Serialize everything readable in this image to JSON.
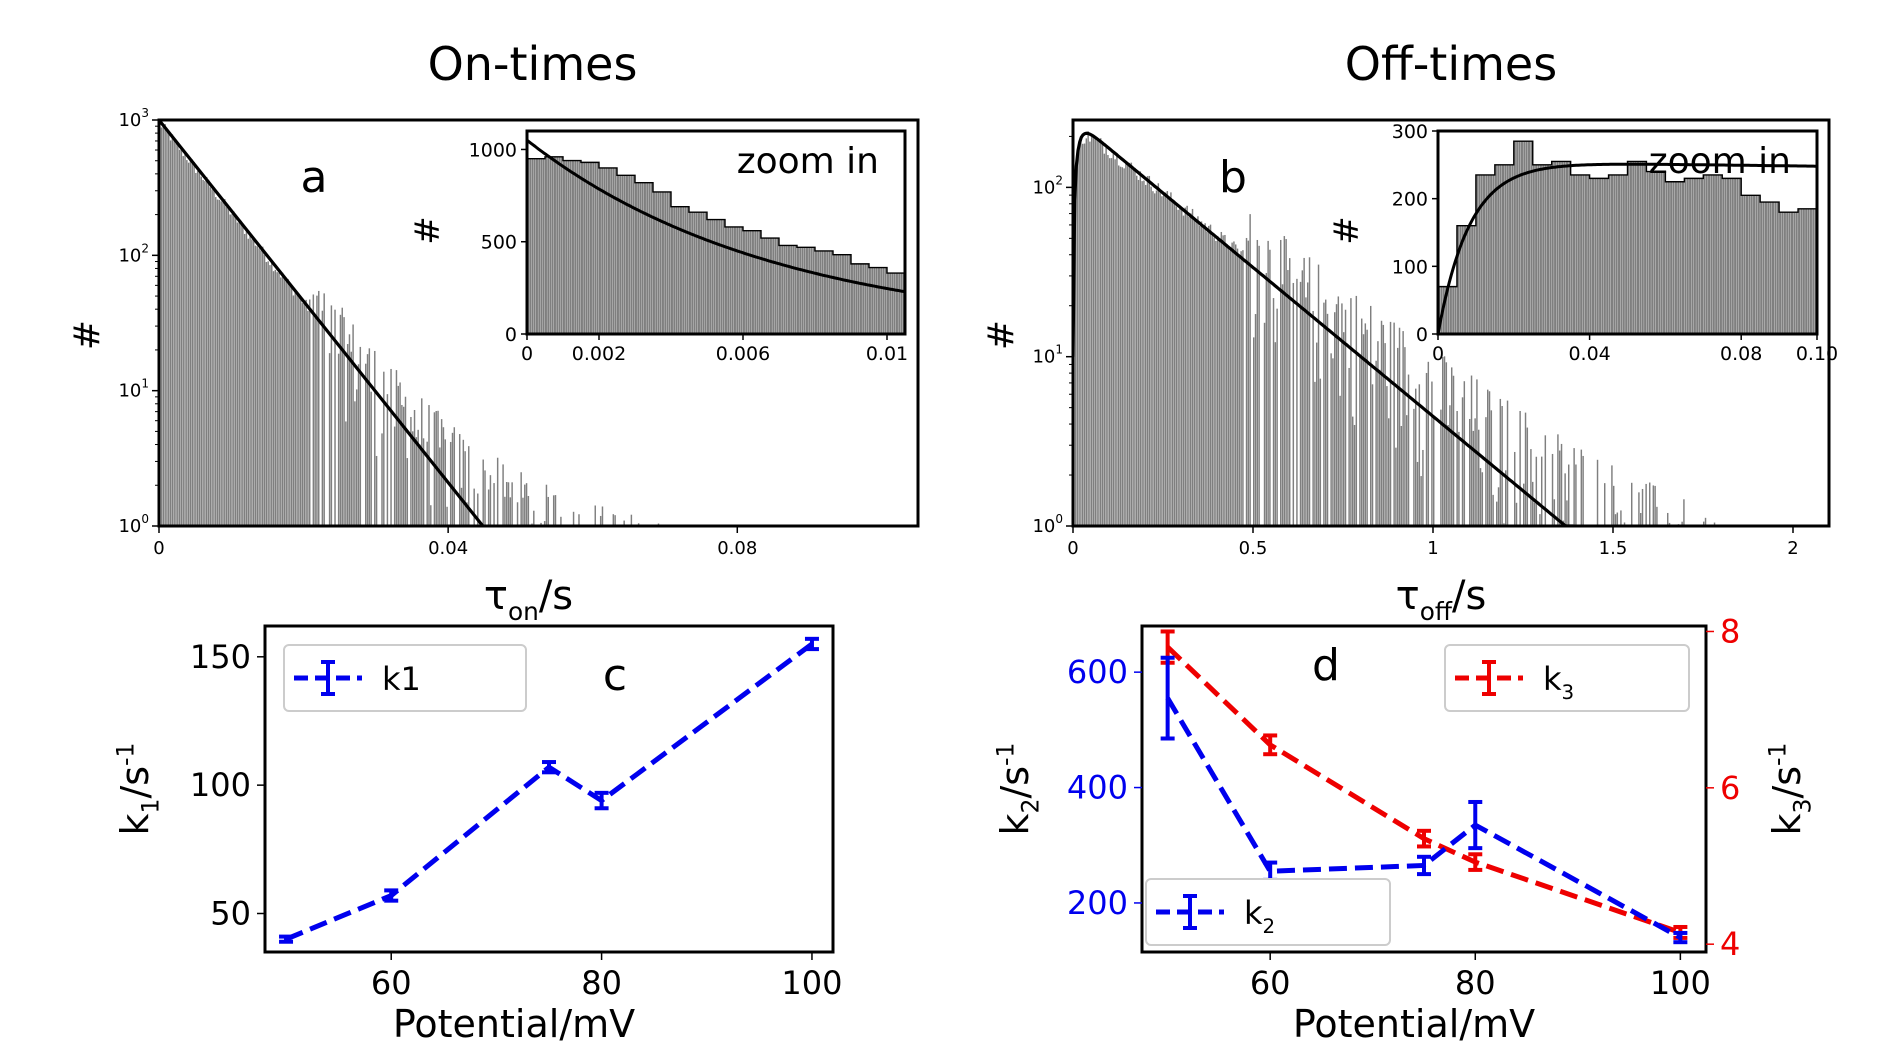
{
  "colors": {
    "hist": "#7f7f7f",
    "fit": "#000000",
    "blue": "#0000ee",
    "red": "#ee0000",
    "legend_border": "#cccccc"
  },
  "chart_data": [
    {
      "id": "a",
      "type": "bar",
      "title": "On-times",
      "panel_label": "a",
      "xlabel_main": "τ",
      "xlabel_sub": "on",
      "xlabel_tail": "/s",
      "ylabel": "#",
      "yscale": "log",
      "xlim": [
        0,
        0.105
      ],
      "ylim": [
        1,
        1000
      ],
      "x_ticks": [
        0,
        0.04,
        0.08
      ],
      "x_tick_labels": [
        "0",
        "0.04",
        "0.08"
      ],
      "y_ticks": [
        1,
        10,
        100,
        1000
      ],
      "y_tick_labels": [
        {
          "base": "10",
          "exp": "0"
        },
        {
          "base": "10",
          "exp": "1"
        },
        {
          "base": "10",
          "exp": "2"
        },
        {
          "base": "10",
          "exp": "3"
        }
      ],
      "hist_model": {
        "kind": "exp_decay",
        "x_max": 0.105,
        "bin_width": 0.00025,
        "amplitude": 950,
        "rate": 155,
        "tail_floor": 3.0
      },
      "fit_line": {
        "x": [
          0,
          0.0448
        ],
        "y": [
          1000,
          1
        ]
      },
      "inset": {
        "label": "zoom in",
        "ylabel": "#",
        "xlim": [
          0,
          0.0105
        ],
        "ylim": [
          0,
          1100
        ],
        "x_ticks": [
          0,
          0.002,
          0.006,
          0.01
        ],
        "x_tick_labels": [
          "0",
          "0.002",
          "0.006",
          "0.01"
        ],
        "y_ticks": [
          0,
          500,
          1000
        ],
        "y_tick_labels": [
          "0",
          "500",
          "1000"
        ],
        "bins": {
          "edges_step": 0.0005,
          "values": [
            950,
            960,
            940,
            930,
            900,
            860,
            820,
            770,
            690,
            660,
            620,
            580,
            560,
            520,
            480,
            470,
            450,
            430,
            380,
            360,
            330
          ]
        },
        "fit": {
          "kind": "exp_decay",
          "amplitude": 1050,
          "rate": 145
        }
      }
    },
    {
      "id": "b",
      "type": "bar",
      "title": "Off-times",
      "panel_label": "b",
      "xlabel_main": "τ",
      "xlabel_sub": "off",
      "xlabel_tail": "/s",
      "ylabel": "#",
      "yscale": "log",
      "xlim": [
        0,
        2.1
      ],
      "ylim": [
        1,
        250
      ],
      "x_ticks": [
        0,
        0.5,
        1,
        1.5,
        2
      ],
      "x_tick_labels": [
        "0",
        "0.5",
        "1",
        "1.5",
        "2"
      ],
      "y_ticks": [
        1,
        10,
        100
      ],
      "y_tick_labels": [
        {
          "base": "10",
          "exp": "0"
        },
        {
          "base": "10",
          "exp": "1"
        },
        {
          "base": "10",
          "exp": "2"
        }
      ],
      "hist_model": {
        "kind": "rise_decay",
        "x_max": 2.05,
        "bin_width": 0.005,
        "amplitude": 240,
        "rate": 3.9,
        "rise": 80,
        "tail_floor": 2.6
      },
      "fit_line": {
        "kind": "rise_decay",
        "amplitude": 255,
        "rate": 4.05,
        "rise": 80,
        "x_max": 1.39
      },
      "inset": {
        "label": "zoom in",
        "ylabel": "#",
        "xlim": [
          0,
          0.1
        ],
        "ylim": [
          0,
          300
        ],
        "x_ticks": [
          0,
          0.04,
          0.08,
          0.1
        ],
        "x_tick_labels": [
          "0",
          "0.04",
          "0.08",
          "0.10"
        ],
        "y_ticks": [
          0,
          100,
          200,
          300
        ],
        "y_tick_labels": [
          "0",
          "100",
          "200",
          "300"
        ],
        "bins": {
          "edges_step": 0.005,
          "values": [
            70,
            160,
            235,
            250,
            285,
            250,
            255,
            235,
            230,
            235,
            255,
            240,
            225,
            230,
            235,
            230,
            205,
            195,
            180,
            185
          ]
        },
        "fit": {
          "kind": "rise_decay_lin",
          "amplitude": 255,
          "rise": 120,
          "slope": 700
        }
      }
    },
    {
      "id": "c",
      "type": "line",
      "panel_label": "c",
      "xlabel": "Potential/mV",
      "ylabel_main": "k",
      "ylabel_sub": "1",
      "ylabel_tail": "/s",
      "ylabel_sup": "-1",
      "xlim": [
        48,
        102
      ],
      "ylim": [
        35,
        162
      ],
      "x_ticks": [
        60,
        80,
        100
      ],
      "y_ticks": [
        50,
        100,
        150
      ],
      "legend": {
        "position": "upper left",
        "entries": [
          {
            "label": "k1",
            "color": "#0000ee"
          }
        ]
      },
      "series": [
        {
          "name": "k1",
          "axis": "left",
          "color": "#0000ee",
          "x": [
            50,
            60,
            75,
            80,
            100
          ],
          "y": [
            40,
            57,
            107,
            94,
            155
          ],
          "err": [
            1,
            2,
            2,
            3,
            2
          ]
        }
      ]
    },
    {
      "id": "d",
      "type": "line",
      "panel_label": "d",
      "xlabel": "Potential/mV",
      "ylabel_main": "k",
      "ylabel_sub": "2",
      "ylabel_tail": "/s",
      "ylabel_sup": "-1",
      "y2label_main": "k",
      "y2label_sub": "3",
      "y2label_tail": "/s",
      "y2label_sup": "-1",
      "xlim": [
        47.5,
        102.5
      ],
      "ylim": [
        115,
        680
      ],
      "y2lim": [
        3.9,
        8.07
      ],
      "x_ticks": [
        60,
        80,
        100
      ],
      "y_ticks": [
        200,
        400,
        600
      ],
      "y2_ticks": [
        4,
        6,
        8
      ],
      "legend": {
        "entries": [
          {
            "label_main": "k",
            "label_sub": "3",
            "color": "#ee0000",
            "position": "upper right"
          },
          {
            "label_main": "k",
            "label_sub": "2",
            "color": "#0000ee",
            "position": "lower left"
          }
        ]
      },
      "series": [
        {
          "name": "k2",
          "axis": "left",
          "color": "#0000ee",
          "x": [
            50,
            60,
            75,
            80,
            100
          ],
          "y": [
            555,
            255,
            265,
            335,
            140
          ],
          "err": [
            70,
            15,
            15,
            40,
            8
          ]
        },
        {
          "name": "k3",
          "axis": "right",
          "color": "#ee0000",
          "x": [
            50,
            60,
            75,
            80,
            100
          ],
          "y": [
            7.8,
            6.55,
            5.35,
            5.05,
            4.15
          ],
          "err": [
            0.2,
            0.12,
            0.1,
            0.1,
            0.07
          ]
        }
      ]
    }
  ]
}
